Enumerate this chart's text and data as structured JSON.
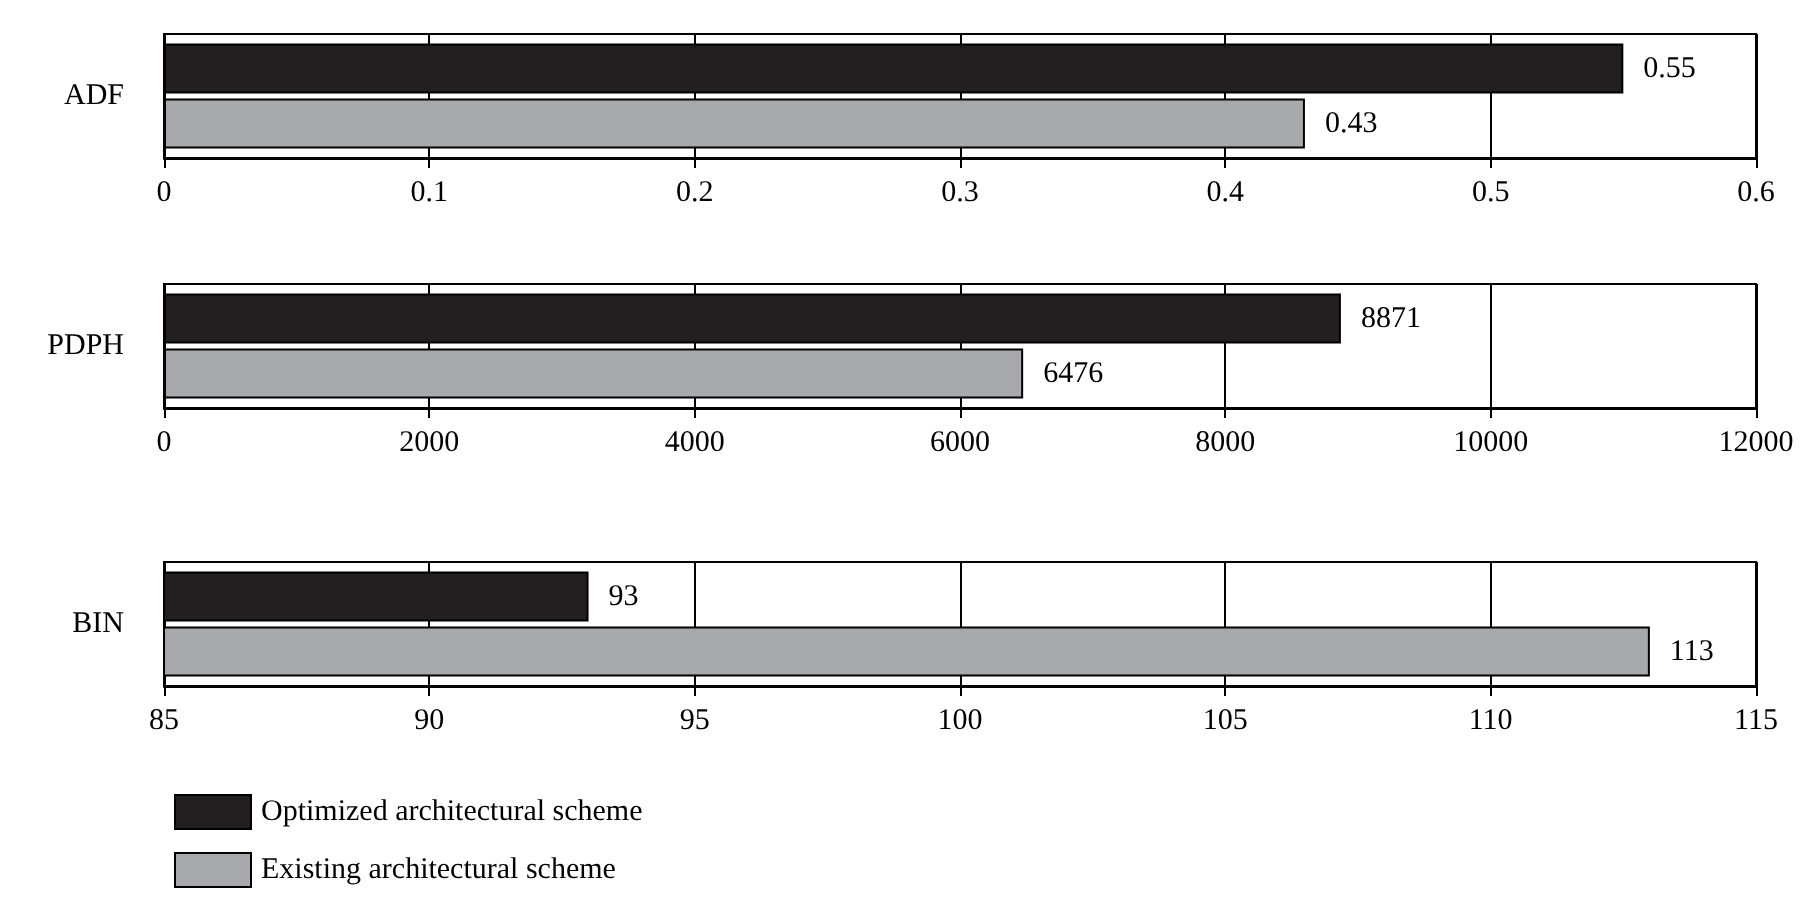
{
  "chart_data": [
    {
      "type": "bar",
      "orientation": "horizontal",
      "categories": [
        "ADF"
      ],
      "series": [
        {
          "color": "#231f20",
          "values": [
            0.55
          ]
        },
        {
          "color": "#a7a9ac",
          "values": [
            0.43
          ]
        }
      ],
      "xlim": [
        0,
        0.6
      ],
      "xticks": [
        0,
        0.1,
        0.2,
        0.3,
        0.4,
        0.5,
        0.6
      ],
      "grid": "x",
      "data_labels": true,
      "legend": false
    },
    {
      "type": "bar",
      "orientation": "horizontal",
      "categories": [
        "PDPH"
      ],
      "series": [
        {
          "color": "#231f20",
          "values": [
            8871
          ]
        },
        {
          "color": "#a7a9ac",
          "values": [
            6476
          ]
        }
      ],
      "xlim": [
        0,
        12000
      ],
      "xticks": [
        0,
        2000,
        4000,
        6000,
        8000,
        10000,
        12000
      ],
      "grid": "x",
      "data_labels": true,
      "legend": false
    },
    {
      "type": "bar",
      "orientation": "horizontal",
      "categories": [
        "BIN"
      ],
      "series": [
        {
          "name": "Optimized architectural scheme",
          "color": "#231f20",
          "values": [
            93
          ]
        },
        {
          "name": "Existing architectural scheme",
          "color": "#a7a9ac",
          "values": [
            113
          ]
        }
      ],
      "xlim": [
        85,
        115
      ],
      "xticks": [
        85,
        90,
        95,
        100,
        105,
        110,
        115
      ],
      "grid": "x",
      "data_labels": true,
      "legend": "bottom"
    }
  ]
}
